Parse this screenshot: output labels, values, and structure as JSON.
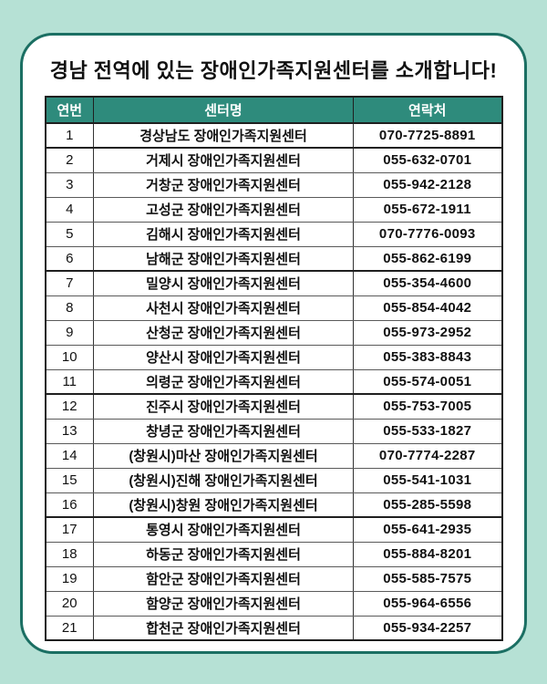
{
  "title": "경남 전역에 있는 장애인가족지원센터를 소개합니다!",
  "colors": {
    "page_background": "#b6e1d5",
    "card_border": "#1b6f63",
    "table_header_background": "#2e8b7c",
    "table_header_text": "#ffffff"
  },
  "table": {
    "headers": [
      "연번",
      "센터명",
      "연락처"
    ],
    "group_breaks_after": [
      1,
      6,
      11,
      16
    ],
    "rows": [
      {
        "no": 1,
        "center": "경상남도 장애인가족지원센터",
        "phone": "070-7725-8891"
      },
      {
        "no": 2,
        "center": "거제시 장애인가족지원센터",
        "phone": "055-632-0701"
      },
      {
        "no": 3,
        "center": "거창군 장애인가족지원센터",
        "phone": "055-942-2128"
      },
      {
        "no": 4,
        "center": "고성군 장애인가족지원센터",
        "phone": "055-672-1911"
      },
      {
        "no": 5,
        "center": "김해시 장애인가족지원센터",
        "phone": "070-7776-0093"
      },
      {
        "no": 6,
        "center": "남해군 장애인가족지원센터",
        "phone": "055-862-6199"
      },
      {
        "no": 7,
        "center": "밀양시 장애인가족지원센터",
        "phone": "055-354-4600"
      },
      {
        "no": 8,
        "center": "사천시 장애인가족지원센터",
        "phone": "055-854-4042"
      },
      {
        "no": 9,
        "center": "산청군 장애인가족지원센터",
        "phone": "055-973-2952"
      },
      {
        "no": 10,
        "center": "양산시 장애인가족지원센터",
        "phone": "055-383-8843"
      },
      {
        "no": 11,
        "center": "의령군 장애인가족지원센터",
        "phone": "055-574-0051"
      },
      {
        "no": 12,
        "center": "진주시 장애인가족지원센터",
        "phone": "055-753-7005"
      },
      {
        "no": 13,
        "center": "창녕군 장애인가족지원센터",
        "phone": "055-533-1827"
      },
      {
        "no": 14,
        "center": "(창원시)마산 장애인가족지원센터",
        "phone": "070-7774-2287"
      },
      {
        "no": 15,
        "center": "(창원시)진해 장애인가족지원센터",
        "phone": "055-541-1031"
      },
      {
        "no": 16,
        "center": "(창원시)창원 장애인가족지원센터",
        "phone": "055-285-5598"
      },
      {
        "no": 17,
        "center": "통영시 장애인가족지원센터",
        "phone": "055-641-2935"
      },
      {
        "no": 18,
        "center": "하동군 장애인가족지원센터",
        "phone": "055-884-8201"
      },
      {
        "no": 19,
        "center": "함안군 장애인가족지원센터",
        "phone": "055-585-7575"
      },
      {
        "no": 20,
        "center": "함양군 장애인가족지원센터",
        "phone": "055-964-6556"
      },
      {
        "no": 21,
        "center": "합천군 장애인가족지원센터",
        "phone": "055-934-2257"
      }
    ]
  }
}
